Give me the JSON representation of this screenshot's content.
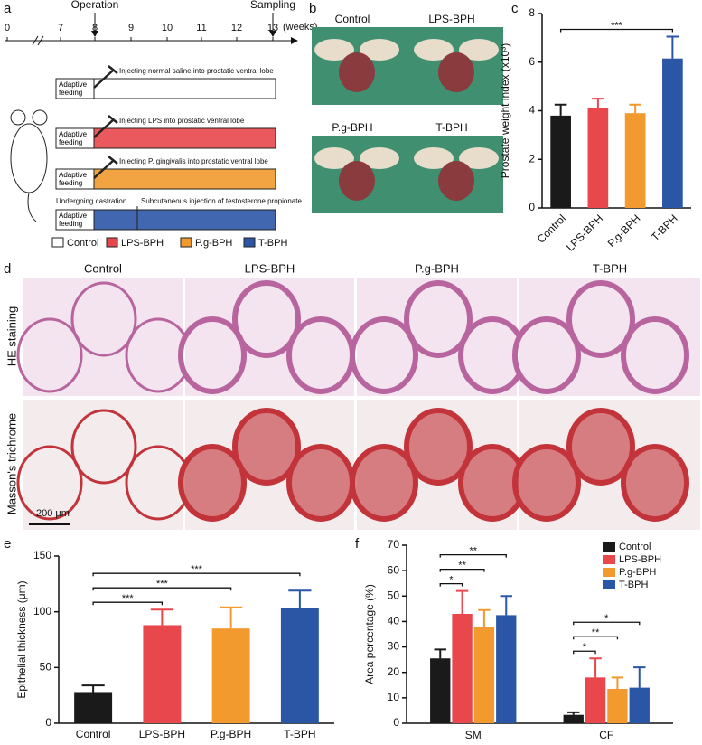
{
  "panel_labels": [
    "a",
    "b",
    "c",
    "d",
    "e",
    "f"
  ],
  "timeline": {
    "events": [
      "Operation",
      "Sampling"
    ],
    "ticks": [
      "0",
      "7",
      "8",
      "9",
      "10",
      "11",
      "12",
      "13"
    ],
    "unit": "(weeks)"
  },
  "groups": [
    {
      "feeding": "Adaptive feeding",
      "treatment": "Injecting normal saline into prostatic ventral lobe"
    },
    {
      "feeding": "Adaptive feeding",
      "treatment": "Injecting LPS into prostatic ventral lobe"
    },
    {
      "feeding": "Adaptive feeding",
      "treatment": "Injecting P. gingivalis into prostatic ventral lobe"
    },
    {
      "feeding": "Adaptive feeding",
      "castration": "Undergoing castration",
      "treatment": "Subcutaneous injection of testosterone propionate"
    }
  ],
  "legend": [
    "Control",
    "LPS-BPH",
    "P.g-BPH",
    "T-BPH"
  ],
  "photos": {
    "labels": [
      "Control",
      "LPS-BPH",
      "P.g-BPH",
      "T-BPH"
    ]
  },
  "histology": {
    "columns": [
      "Control",
      "LPS-BPH",
      "P.g-BPH",
      "T-BPH"
    ],
    "rows": [
      "HE staining",
      "Masson's trichrome"
    ],
    "scale_bar": "200 μm"
  },
  "chart_data": [
    {
      "type": "bar",
      "ylabel": "Prostate weight index (x10³)",
      "categories": [
        "Control",
        "LPS-BPH",
        "P.g-BPH",
        "T-BPH"
      ],
      "values": [
        3.8,
        4.1,
        3.9,
        6.15
      ],
      "errors": [
        0.45,
        0.4,
        0.35,
        0.9
      ],
      "colors": [
        "#1a1a1a",
        "#e8474c",
        "#f29a2e",
        "#2b56a6"
      ],
      "ylim": [
        0,
        8
      ],
      "yticks": [
        0,
        2,
        4,
        6,
        8
      ],
      "annotations": [
        {
          "from": "Control",
          "to": "T-BPH",
          "label": "***"
        }
      ]
    },
    {
      "type": "bar",
      "ylabel": "Epithelial thickness (μm)",
      "categories": [
        "Control",
        "LPS-BPH",
        "P.g-BPH",
        "T-BPH"
      ],
      "values": [
        28,
        88,
        85,
        103
      ],
      "errors": [
        6,
        14,
        19,
        16
      ],
      "colors": [
        "#1a1a1a",
        "#e8474c",
        "#f29a2e",
        "#2b56a6"
      ],
      "ylim": [
        0,
        150
      ],
      "yticks": [
        0,
        50,
        100,
        150
      ],
      "annotations": [
        {
          "from": "Control",
          "to": "LPS-BPH",
          "label": "***"
        },
        {
          "from": "Control",
          "to": "P.g-BPH",
          "label": "***"
        },
        {
          "from": "Control",
          "to": "T-BPH",
          "label": "***"
        }
      ]
    },
    {
      "type": "bar",
      "ylabel": "Area percentage (%)",
      "categories": [
        "SM",
        "CF"
      ],
      "series": [
        {
          "name": "Control",
          "color": "#1a1a1a",
          "values": [
            25.5,
            3.3
          ],
          "errors": [
            3.5,
            1
          ]
        },
        {
          "name": "LPS-BPH",
          "color": "#e8474c",
          "values": [
            43,
            18
          ],
          "errors": [
            9,
            7.5
          ]
        },
        {
          "name": "P.g-BPH",
          "color": "#f29a2e",
          "values": [
            38,
            13.5
          ],
          "errors": [
            6.5,
            4.5
          ]
        },
        {
          "name": "T-BPH",
          "color": "#2b56a6",
          "values": [
            42.5,
            14
          ],
          "errors": [
            7.5,
            8
          ]
        }
      ],
      "ylim": [
        0,
        70
      ],
      "yticks": [
        0,
        10,
        20,
        30,
        40,
        50,
        60,
        70
      ],
      "legend": "top-right",
      "annotations": [
        {
          "category": "SM",
          "from": "Control",
          "to": "LPS-BPH",
          "label": "*"
        },
        {
          "category": "SM",
          "from": "Control",
          "to": "P.g-BPH",
          "label": "**"
        },
        {
          "category": "SM",
          "from": "Control",
          "to": "T-BPH",
          "label": "**"
        },
        {
          "category": "CF",
          "from": "Control",
          "to": "LPS-BPH",
          "label": "*"
        },
        {
          "category": "CF",
          "from": "Control",
          "to": "P.g-BPH",
          "label": "**"
        },
        {
          "category": "CF",
          "from": "Control",
          "to": "T-BPH",
          "label": "*"
        }
      ]
    }
  ]
}
